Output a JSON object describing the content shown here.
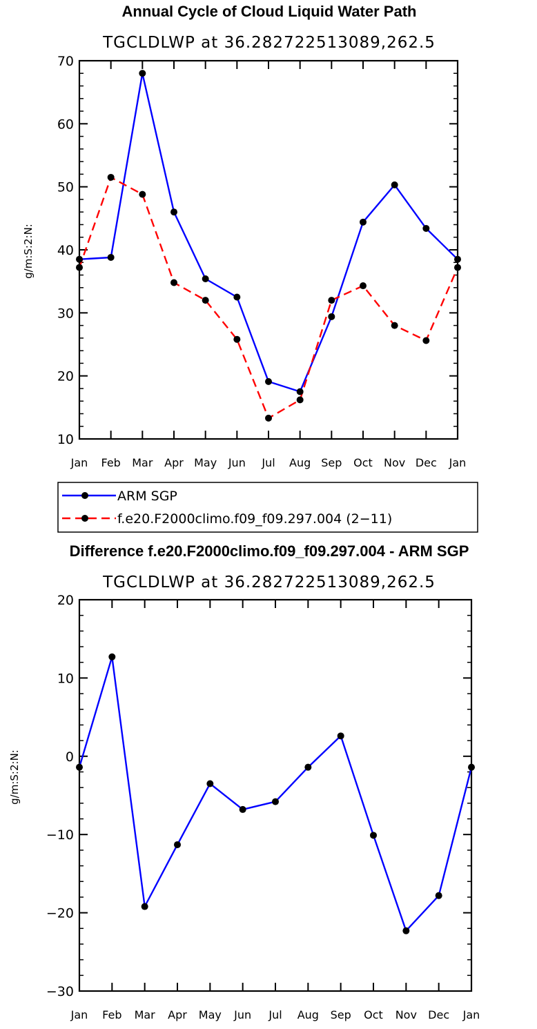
{
  "chart_data": [
    {
      "type": "line",
      "title": "Annual Cycle of Cloud Liquid Water Path",
      "subtitle": "TGCLDLWP  at  36.282722513089,262.5",
      "ylabel": "g/m:S:2:N:",
      "ylim": [
        10,
        70
      ],
      "yticks": [
        "10",
        "20",
        "30",
        "40",
        "50",
        "60",
        "70"
      ],
      "categories": [
        "Jan",
        "Feb",
        "Mar",
        "Apr",
        "May",
        "Jun",
        "Jul",
        "Aug",
        "Sep",
        "Oct",
        "Nov",
        "Dec",
        "Jan"
      ],
      "series": [
        {
          "name": "ARM SGP",
          "color": "#0000ff",
          "dash": "solid",
          "values": [
            38.5,
            38.8,
            68.0,
            46.0,
            35.4,
            32.5,
            19.1,
            17.5,
            29.4,
            44.4,
            50.3,
            43.4,
            38.5
          ]
        },
        {
          "name": "f.e20.F2000climo.f09_f09.297.004 (2−11)",
          "color": "#ff0000",
          "dash": "dashed",
          "values": [
            37.2,
            51.5,
            48.8,
            34.8,
            32.0,
            25.8,
            13.3,
            16.2,
            32.0,
            34.3,
            28.0,
            25.6,
            37.2
          ]
        }
      ],
      "legend": "below"
    },
    {
      "type": "line",
      "title": "Difference f.e20.F2000climo.f09_f09.297.004 - ARM SGP",
      "subtitle": "TGCLDLWP  at  36.282722513089,262.5",
      "ylabel": "g/m:S:2:N:",
      "ylim": [
        -30,
        20
      ],
      "yticks": [
        "−30",
        "−20",
        "−10",
        "0",
        "10",
        "20"
      ],
      "categories": [
        "Jan",
        "Feb",
        "Mar",
        "Apr",
        "May",
        "Jun",
        "Jul",
        "Aug",
        "Sep",
        "Oct",
        "Nov",
        "Dec",
        "Jan"
      ],
      "series": [
        {
          "color": "#0000ff",
          "dash": "solid",
          "values": [
            -1.4,
            12.7,
            -19.2,
            -11.3,
            -3.5,
            -6.8,
            -5.8,
            -1.4,
            2.6,
            -10.1,
            -22.3,
            -17.8,
            -1.4
          ]
        }
      ]
    }
  ]
}
